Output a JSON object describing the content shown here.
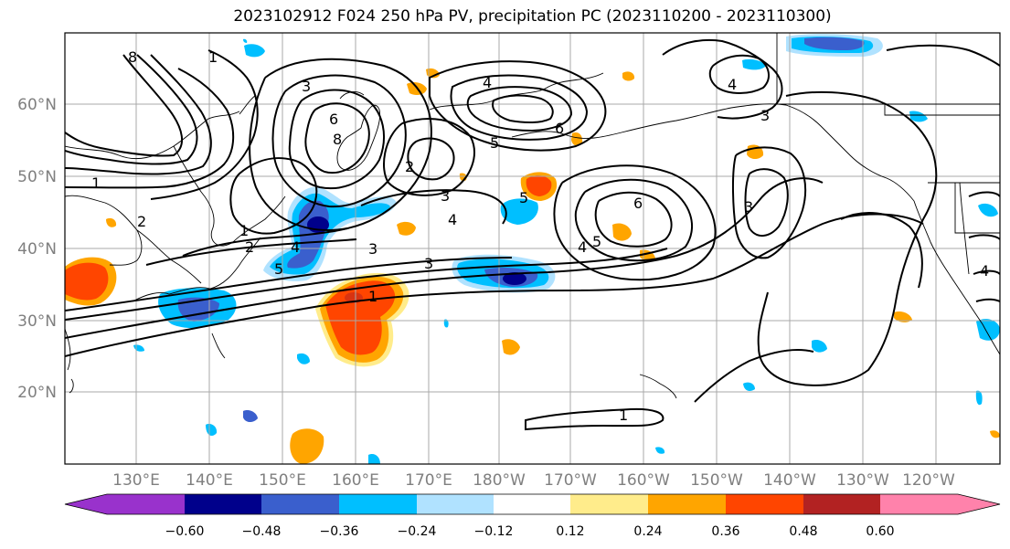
{
  "title": "2023102912 F024 250 hPa PV, precipitation PC (2023110200 - 2023110300)",
  "lat_labels": [
    "60°N",
    "50°N",
    "40°N",
    "30°N",
    "20°N"
  ],
  "lon_labels": [
    "130°E",
    "140°E",
    "150°E",
    "160°E",
    "170°E",
    "180°W",
    "170°W",
    "160°W",
    "150°W",
    "140°W",
    "130°W",
    "120°W"
  ],
  "colorbar": {
    "ticks": [
      "−0.60",
      "−0.48",
      "−0.36",
      "−0.24",
      "−0.12",
      "0.12",
      "0.24",
      "0.36",
      "0.48",
      "0.60"
    ],
    "colors": [
      "#9932cc",
      "#00008b",
      "#3a5fcd",
      "#00bfff",
      "#b0e2ff",
      "#ffffff",
      "#ffec8b",
      "#ffa500",
      "#ff4500",
      "#b22222",
      "#ff82ab"
    ]
  },
  "contour_labels": [
    "8",
    "1",
    "3",
    "6",
    "8",
    "4",
    "5",
    "2",
    "3",
    "6",
    "5",
    "1",
    "2",
    "4",
    "3",
    "1",
    "2",
    "5",
    "4",
    "6",
    "4",
    "5",
    "3",
    "4",
    "3",
    "1",
    "3",
    "4",
    "1"
  ],
  "shading_colors": {
    "positive_light": "#ffec8b",
    "positive_mid": "#ffa500",
    "positive_strong": "#ff4500",
    "negative_light": "#b0e2ff",
    "negative_mid": "#00bfff",
    "negative_strong": "#3a5fcd",
    "negative_max": "#00008b"
  }
}
